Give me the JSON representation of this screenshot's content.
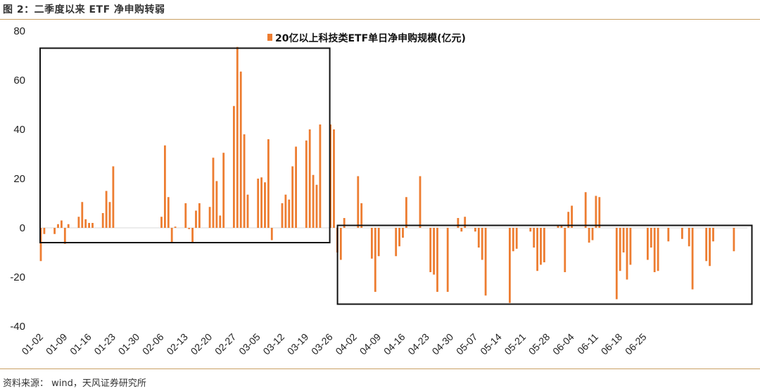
{
  "header": {
    "title": "图 2：二季度以来 ETF 净申购转弱"
  },
  "footer": {
    "source": "资料来源： wind，天风证券研究所"
  },
  "colors": {
    "bar": "#ED7D31",
    "rule": "#C9A063",
    "box": "#111111"
  },
  "chart_data": {
    "type": "bar",
    "title": "",
    "xlabel": "",
    "ylabel": "",
    "ylim": [
      -40,
      80
    ],
    "yticks": [
      80,
      60,
      40,
      20,
      0,
      -20,
      -40
    ],
    "grid": false,
    "legend": {
      "position": "top-center",
      "label": "20亿以上科技类ETF单日净申购规模(亿元)"
    },
    "xtick_labels": [
      "01-02",
      "01-09",
      "01-16",
      "01-23",
      "01-30",
      "02-06",
      "02-13",
      "02-20",
      "02-27",
      "03-05",
      "03-12",
      "03-19",
      "03-26",
      "04-02",
      "04-09",
      "04-16",
      "04-23",
      "04-30",
      "05-07",
      "05-14",
      "05-21",
      "05-28",
      "06-04",
      "06-11",
      "06-18",
      "06-25"
    ],
    "series": [
      {
        "name": "20亿以上科技类ETF单日净申购规模(亿元)",
        "values": [
          -13.5,
          -2.5,
          0,
          0,
          -2.5,
          1.5,
          3,
          -6.5,
          1.5,
          0,
          0,
          4.5,
          10.5,
          3.5,
          2,
          2,
          0,
          0,
          6,
          15,
          10.5,
          25,
          0,
          0,
          0,
          0,
          0,
          0,
          0,
          0,
          0,
          0,
          0,
          0,
          0,
          4.5,
          33.5,
          12.5,
          -6,
          0.5,
          0,
          0,
          10,
          -0.5,
          -6,
          7,
          10,
          0,
          0,
          8.5,
          28.5,
          19,
          5,
          30.5,
          0,
          0,
          49.5,
          73.5,
          63.5,
          38,
          13.5,
          0,
          0,
          20,
          20.5,
          18.5,
          36,
          -5,
          0,
          0,
          10,
          13.5,
          11.5,
          25,
          33,
          0,
          0,
          35.5,
          40,
          21.5,
          17.5,
          42,
          0,
          0,
          42,
          40,
          -10,
          -13,
          4,
          0,
          0,
          0,
          21,
          10,
          0,
          0,
          -12.5,
          -26,
          -11.5,
          0,
          0,
          0,
          0,
          -11.5,
          -7.5,
          -4,
          12.5,
          0,
          0,
          0,
          21,
          0,
          0,
          -18,
          -19,
          -26,
          0,
          0,
          -26,
          0,
          0,
          4,
          -1.5,
          4.5,
          0,
          0,
          -1.5,
          -8,
          -13,
          -27.5,
          0,
          0,
          0,
          0,
          0,
          0,
          -30.5,
          -9.5,
          -8.5,
          0,
          0,
          0,
          -1.5,
          -8,
          -17.5,
          -15,
          -14,
          0,
          0,
          0,
          1,
          1,
          -18,
          6.5,
          9,
          0,
          0,
          0,
          14.5,
          -6,
          -5,
          13,
          12.5,
          0,
          0,
          0,
          0,
          -29,
          -17.5,
          -10,
          -21,
          -15,
          0,
          0,
          0,
          0,
          -13,
          -8,
          -18,
          -17.5,
          0,
          0,
          -5.5,
          0,
          0,
          0,
          -4.5,
          0,
          -7.5,
          -25,
          0,
          0,
          0,
          -13.5,
          -15.5,
          -5.5,
          0,
          0,
          0,
          0,
          0,
          -9.5
        ]
      }
    ],
    "annotation_boxes": [
      {
        "x_from": "01-02",
        "x_to": "03-26",
        "y_from": -6,
        "y_to": 73
      },
      {
        "x_from": "03-26",
        "x_to": "06-30",
        "y_from": -31,
        "y_to": 1
      }
    ]
  }
}
